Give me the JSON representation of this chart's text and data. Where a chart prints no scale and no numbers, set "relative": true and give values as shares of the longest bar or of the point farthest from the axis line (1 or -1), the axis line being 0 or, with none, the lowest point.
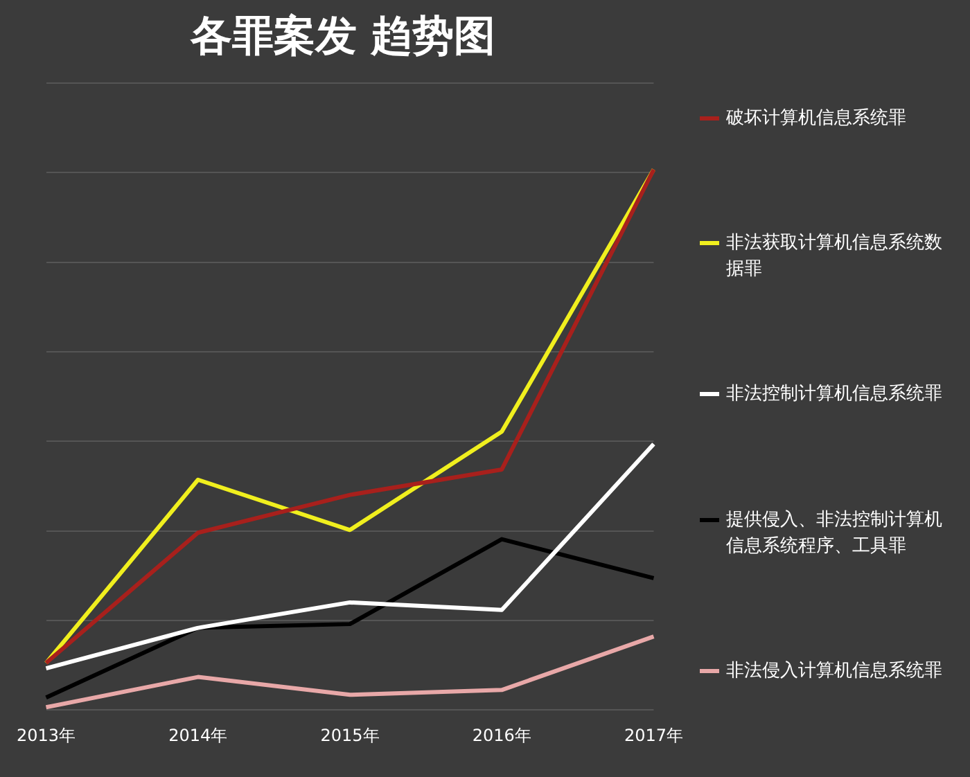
{
  "chart_data": {
    "type": "line",
    "title": "各罪案发 趋势图",
    "relative": true,
    "grid": "y",
    "legend": "right",
    "marker": "none",
    "line_style": "solid",
    "categories": [
      "2013年",
      "2014年",
      "2015年",
      "2016年",
      "2017年"
    ],
    "series": [
      {
        "name": "破坏计算机信息系统罪",
        "color": "#a8201c",
        "values": [
          0.087,
          0.328,
          0.398,
          0.445,
          1
        ]
      },
      {
        "name": "非法获取计算机信息系统数据罪",
        "color": "#f0ef1e",
        "values": [
          0.087,
          0.426,
          0.333,
          0.515,
          1
        ]
      },
      {
        "name": "非法控制计算机信息系统罪",
        "color": "#ffffff",
        "values": [
          0.077,
          0.152,
          0.199,
          0.185,
          0.492
        ]
      },
      {
        "name": "提供侵入、非法控制计算机信息系统程序、工具罪",
        "color": "#000000",
        "values": [
          0.023,
          0.152,
          0.159,
          0.316,
          0.244
        ]
      },
      {
        "name": "非法侵入计算机信息系统罪",
        "color": "#e8a8a8",
        "values": [
          0.005,
          0.061,
          0.028,
          0.037,
          0.136
        ]
      }
    ]
  }
}
